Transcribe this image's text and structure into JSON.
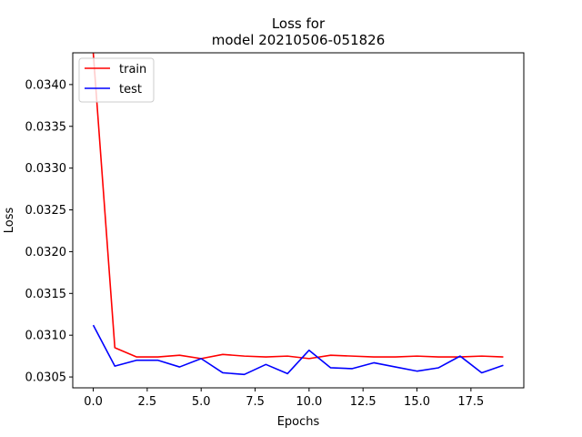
{
  "chart_data": {
    "type": "line",
    "title": "Loss for",
    "subtitle": "model 20210506-051826",
    "xlabel": "Epochs",
    "ylabel": "Loss",
    "xlim": [
      -0.95,
      19.95
    ],
    "ylim": [
      0.03037,
      0.03438
    ],
    "xticks": [
      0,
      2.5,
      5,
      7.5,
      10,
      12.5,
      15,
      17.5
    ],
    "xtick_labels": [
      "0.0",
      "2.5",
      "5.0",
      "7.5",
      "10.0",
      "12.5",
      "15.0",
      "17.5"
    ],
    "yticks": [
      0.0305,
      0.031,
      0.0315,
      0.032,
      0.0325,
      0.033,
      0.0335,
      0.034
    ],
    "ytick_labels": [
      "0.0305",
      "0.0310",
      "0.0315",
      "0.0320",
      "0.0325",
      "0.0330",
      "0.0335",
      "0.0340"
    ],
    "grid": false,
    "legend_position": "upper-left",
    "x": [
      0,
      1,
      2,
      3,
      4,
      5,
      6,
      7,
      8,
      9,
      10,
      11,
      12,
      13,
      14,
      15,
      16,
      17,
      18,
      19
    ],
    "series": [
      {
        "name": "train",
        "color": "#ff0000",
        "values": [
          0.03438,
          0.03085,
          0.03074,
          0.03074,
          0.03076,
          0.03072,
          0.03077,
          0.03075,
          0.03074,
          0.03075,
          0.03072,
          0.03076,
          0.03075,
          0.03074,
          0.03074,
          0.03075,
          0.03074,
          0.03074,
          0.03075,
          0.03074
        ]
      },
      {
        "name": "test",
        "color": "#0000ff",
        "values": [
          0.03112,
          0.03063,
          0.0307,
          0.0307,
          0.03062,
          0.03072,
          0.03055,
          0.03053,
          0.03065,
          0.03054,
          0.03082,
          0.03061,
          0.0306,
          0.03067,
          0.03062,
          0.03057,
          0.03061,
          0.03075,
          0.03055,
          0.03064
        ]
      }
    ]
  }
}
